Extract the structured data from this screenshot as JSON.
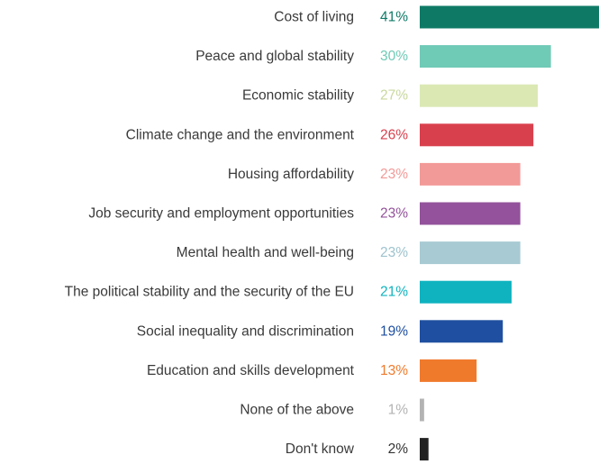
{
  "chart_data": {
    "type": "bar",
    "orientation": "horizontal",
    "title": "",
    "xlabel": "",
    "ylabel": "",
    "value_suffix": "%",
    "xlim": [
      0,
      41
    ],
    "grid": false,
    "legend": "none",
    "categories": [
      "Cost of living",
      "Peace and global stability",
      "Economic stability",
      "Climate change and the environment",
      "Housing affordability",
      "Job security and employment opportunities",
      "Mental health and well-being",
      "The political stability and the security of the EU",
      "Social inequality and discrimination",
      "Education and skills development",
      "None of the above",
      "Don't know"
    ],
    "values": [
      41,
      30,
      27,
      26,
      23,
      23,
      23,
      21,
      19,
      13,
      1,
      2
    ],
    "value_labels": [
      "41%",
      "30%",
      "27%",
      "26%",
      "23%",
      "23%",
      "23%",
      "21%",
      "19%",
      "13%",
      "1%",
      "2%"
    ],
    "colors": [
      "#0e7a66",
      "#6fcab6",
      "#dbe8b4",
      "#d9404d",
      "#f29a98",
      "#93529b",
      "#a7cad3",
      "#0eb3bf",
      "#1f4fa0",
      "#f07a2c",
      "#b3b3b3",
      "#222222"
    ],
    "label_colors": [
      "#0e7a66",
      "#6fcab6",
      "#c9d89e",
      "#d9404d",
      "#f29a98",
      "#93529b",
      "#9ec3cd",
      "#0eb3bf",
      "#1f4fa0",
      "#f07a2c",
      "#b3b3b3",
      "#333333"
    ]
  }
}
